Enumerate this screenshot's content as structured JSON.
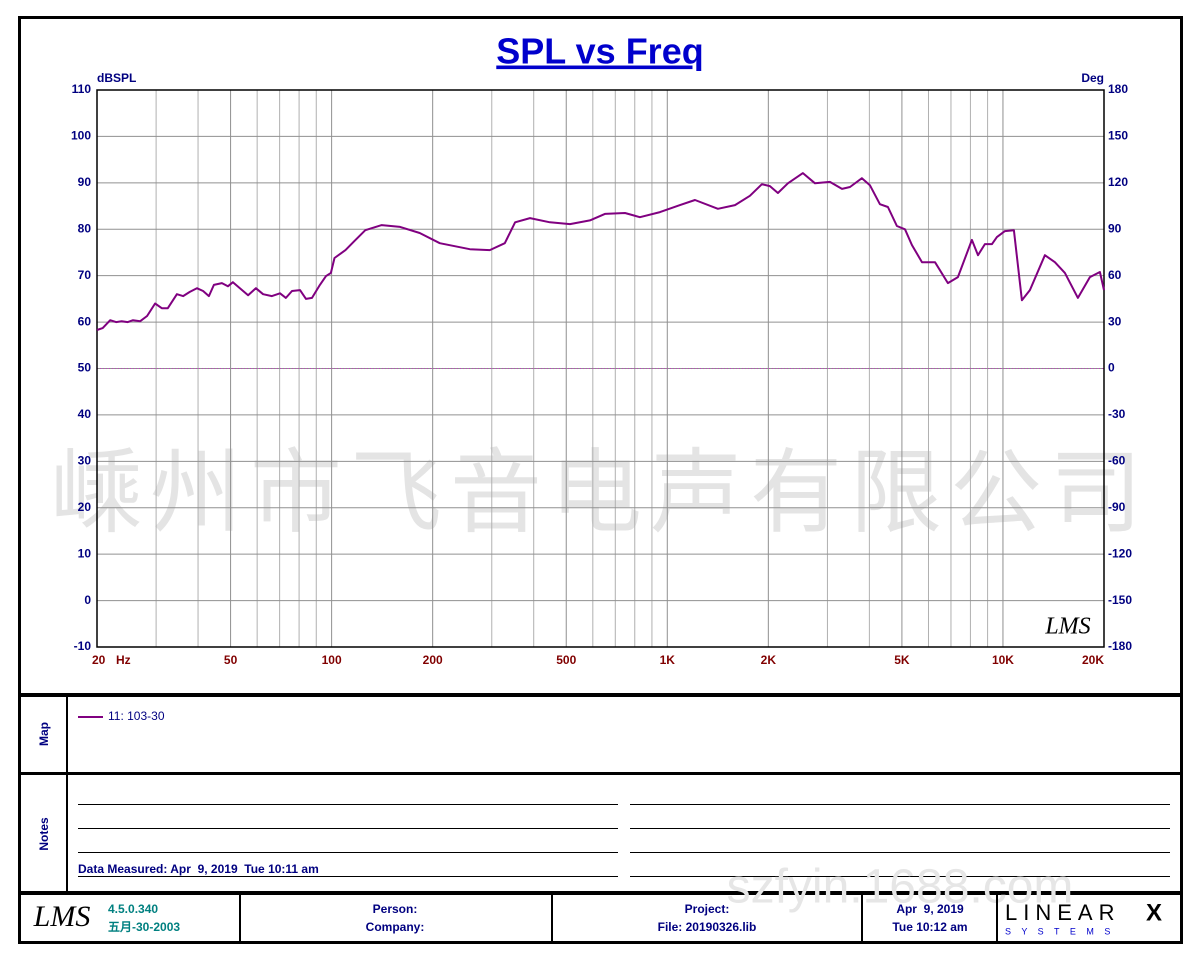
{
  "chart_data": {
    "type": "line",
    "title": "SPL vs Freq",
    "y_label": "dBSPL",
    "y2_label": "Deg",
    "x_unit": "Hz",
    "x_scale": "log",
    "logo": "LMS",
    "x": [
      20,
      20.8,
      21.9,
      22.8,
      23.7,
      24.7,
      25.6,
      26.9,
      28.2,
      29.8,
      31.2,
      32.5,
      34.6,
      36.1,
      37.8,
      39.7,
      41.4,
      43.1,
      44.6,
      47.1,
      49.1,
      50.8,
      53.3,
      56.4,
      59.5,
      62.5,
      66.4,
      70.2,
      73.1,
      76.2,
      80.5,
      83.9,
      87.4,
      92.3,
      96.2,
      99.5,
      102,
      110,
      117,
      126,
      141,
      160,
      183,
      210,
      258,
      296,
      328,
      352,
      390,
      447,
      513,
      588,
      652,
      748,
      829,
      951,
      1091,
      1209,
      1415,
      1591,
      1763,
      1914,
      2022,
      2136,
      2288,
      2536,
      2754,
      3051,
      3314,
      3502,
      3800,
      4015,
      4299,
      4543,
      4832,
      5106,
      5356,
      5738,
      6272,
      6856,
      7342,
      8084,
      8424,
      8838,
      9274,
      9596,
      10136,
      10778,
      11386,
      12028,
      13335,
      14284,
      15296,
      16727,
      18155,
      19446,
      20000
    ],
    "series": [
      {
        "name": "11: 103-30",
        "color": "#800080",
        "values": [
          58.3,
          58.7,
          60.4,
          60,
          60.2,
          60,
          60.4,
          60.2,
          61.3,
          64,
          63,
          63,
          66,
          65.6,
          66.5,
          67.3,
          66.7,
          65.6,
          68,
          68.4,
          67.7,
          68.6,
          67.3,
          65.8,
          67.3,
          66,
          65.6,
          66.2,
          65.2,
          66.7,
          66.9,
          65,
          65.2,
          68,
          69.9,
          70.6,
          73.8,
          75.5,
          77.5,
          79.8,
          80.9,
          80.5,
          79.2,
          77,
          75.7,
          75.5,
          77,
          81.5,
          82.4,
          81.5,
          81.1,
          81.9,
          83.3,
          83.5,
          82.6,
          83.7,
          85.2,
          86.3,
          84.4,
          85.2,
          87.2,
          89.7,
          89.3,
          87.8,
          89.9,
          92.1,
          89.9,
          90.2,
          88.7,
          89.1,
          91,
          89.5,
          85.4,
          84.8,
          80.7,
          80,
          76.6,
          72.9,
          72.9,
          68.4,
          69.7,
          77.7,
          74.4,
          76.8,
          76.8,
          78.3,
          79.6,
          79.8,
          64.7,
          66.9,
          74.4,
          72.9,
          70.6,
          65.2,
          69.7,
          70.8,
          66.9
        ]
      }
    ],
    "xlim": [
      20,
      20000
    ],
    "xticks": [
      20,
      50,
      100,
      200,
      500,
      {
        "value": 1000,
        "label": "1K"
      },
      {
        "value": 2000,
        "label": "2K"
      },
      {
        "value": 5000,
        "label": "5K"
      },
      {
        "value": 10000,
        "label": "10K"
      },
      {
        "value": 20000,
        "label": "20K"
      }
    ],
    "x_grid": [
      30,
      40,
      60,
      70,
      80,
      90,
      300,
      400,
      600,
      700,
      800,
      900,
      3000,
      4000,
      6000,
      7000,
      8000,
      9000
    ],
    "ylim": [
      -10,
      110
    ],
    "yticks": [
      -10,
      0,
      10,
      20,
      30,
      40,
      50,
      60,
      70,
      80,
      90,
      100,
      110
    ],
    "y2lim": [
      -180,
      180
    ],
    "y2ticks": [
      -180,
      -150,
      -120,
      -90,
      -60,
      -30,
      0,
      30,
      60,
      90,
      120,
      150,
      180
    ],
    "grid": true
  },
  "watermark": [
    "嵊州市飞音电声有限公司",
    "szfyin.1688.com"
  ],
  "map": {
    "label": "Map"
  },
  "notes": {
    "label": "Notes",
    "data_measured": "Data Measured: Apr  9, 2019  Tue 10:11 am"
  },
  "footer": {
    "logo": "LMS",
    "version": "4.5.0.340",
    "build_date": "五月-30-2003",
    "person": "Person:",
    "company": "Company:",
    "project": "Project:",
    "file": "File: 20190326.lib",
    "date": "Apr  9, 2019",
    "time": "Tue 10:12 am",
    "brand": "LINEAR",
    "brand_x": "X",
    "brand_sub": "S Y S T E M S"
  }
}
